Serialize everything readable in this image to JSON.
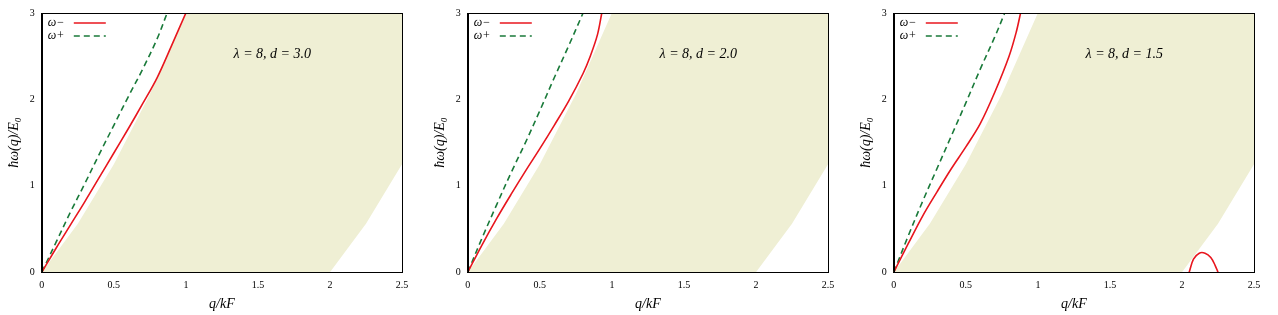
{
  "chart_data": [
    {
      "type": "line",
      "x_label": "q/kF",
      "y_label": "ħω(q)/E₀",
      "annotation": "λ = 8, d = 3.0",
      "xlim": [
        0,
        2.5
      ],
      "xticks": [
        0,
        0.5,
        1,
        1.5,
        2,
        2.5
      ],
      "ylim": [
        0,
        3
      ],
      "yticks": [
        0,
        1,
        2,
        3
      ],
      "grid": false,
      "legend": "top-left",
      "continuum": {
        "color": "#efefd4",
        "x": [
          0,
          0.25,
          0.5,
          0.75,
          1.0,
          1.25,
          1.5,
          1.75,
          2.0,
          2.25,
          2.5
        ],
        "lower": [
          0,
          0,
          0,
          0,
          0,
          0,
          0,
          0,
          0,
          0.56,
          1.25
        ],
        "upper": [
          0,
          0.56,
          1.25,
          2.06,
          3,
          3,
          3,
          3,
          3,
          3,
          3
        ]
      },
      "series": [
        {
          "name": "ω−",
          "color": "#e8161e",
          "line_style": "solid",
          "x": [
            0,
            0.1,
            0.2,
            0.3,
            0.4,
            0.5,
            0.6,
            0.7,
            0.8,
            0.9,
            1.0
          ],
          "values": [
            0,
            0.28,
            0.55,
            0.82,
            1.1,
            1.38,
            1.66,
            1.95,
            2.25,
            2.62,
            3.0
          ]
        },
        {
          "name": "ω+",
          "color": "#1a7a3a",
          "line_style": "dashed",
          "x": [
            0,
            0.1,
            0.2,
            0.3,
            0.4,
            0.5,
            0.6,
            0.7,
            0.8,
            0.87
          ],
          "values": [
            0,
            0.35,
            0.7,
            1.03,
            1.37,
            1.7,
            2.03,
            2.35,
            2.7,
            3.0
          ]
        }
      ]
    },
    {
      "type": "line",
      "x_label": "q/kF",
      "y_label": "ħω(q)/E₀",
      "annotation": "λ = 8, d = 2.0",
      "xlim": [
        0,
        2.5
      ],
      "xticks": [
        0,
        0.5,
        1,
        1.5,
        2,
        2.5
      ],
      "ylim": [
        0,
        3
      ],
      "yticks": [
        0,
        1,
        2,
        3
      ],
      "grid": false,
      "legend": "top-left",
      "continuum": {
        "color": "#efefd4",
        "x": [
          0,
          0.25,
          0.5,
          0.75,
          1.0,
          1.25,
          1.5,
          1.75,
          2.0,
          2.25,
          2.5
        ],
        "lower": [
          0,
          0,
          0,
          0,
          0,
          0,
          0,
          0,
          0,
          0.56,
          1.25
        ],
        "upper": [
          0,
          0.56,
          1.25,
          2.06,
          3,
          3,
          3,
          3,
          3,
          3,
          3
        ]
      },
      "series": [
        {
          "name": "ω−",
          "color": "#e8161e",
          "line_style": "solid",
          "x": [
            0,
            0.1,
            0.2,
            0.3,
            0.4,
            0.5,
            0.6,
            0.7,
            0.8,
            0.85,
            0.9,
            0.93
          ],
          "values": [
            0,
            0.32,
            0.62,
            0.9,
            1.17,
            1.43,
            1.7,
            1.98,
            2.3,
            2.5,
            2.75,
            3.0
          ]
        },
        {
          "name": "ω+",
          "color": "#1a7a3a",
          "line_style": "dashed",
          "x": [
            0,
            0.1,
            0.2,
            0.3,
            0.4,
            0.5,
            0.6,
            0.7,
            0.8
          ],
          "values": [
            0,
            0.4,
            0.78,
            1.15,
            1.5,
            1.87,
            2.25,
            2.62,
            3.0
          ]
        }
      ]
    },
    {
      "type": "line",
      "x_label": "q/kF",
      "y_label": "ħω(q)/E₀",
      "annotation": "λ = 8, d = 1.5",
      "xlim": [
        0,
        2.5
      ],
      "xticks": [
        0,
        0.5,
        1,
        1.5,
        2,
        2.5
      ],
      "ylim": [
        0,
        3
      ],
      "yticks": [
        0,
        1,
        2,
        3
      ],
      "grid": false,
      "legend": "top-left",
      "continuum": {
        "color": "#efefd4",
        "x": [
          0,
          0.25,
          0.5,
          0.75,
          1.0,
          1.25,
          1.5,
          1.75,
          2.0,
          2.25,
          2.5
        ],
        "lower": [
          0,
          0,
          0,
          0,
          0,
          0,
          0,
          0,
          0,
          0.56,
          1.25
        ],
        "upper": [
          0,
          0.56,
          1.25,
          2.06,
          3,
          3,
          3,
          3,
          3,
          3,
          3
        ]
      },
      "series": [
        {
          "name": "ω−",
          "color": "#e8161e",
          "line_style": "solid",
          "x": [
            0,
            0.1,
            0.2,
            0.3,
            0.4,
            0.5,
            0.6,
            0.7,
            0.8,
            0.85,
            0.88,
            1.5,
            2.05,
            2.08,
            2.12,
            2.16,
            2.2,
            2.23,
            2.25
          ],
          "values": [
            0,
            0.33,
            0.65,
            0.93,
            1.2,
            1.45,
            1.72,
            2.08,
            2.5,
            2.78,
            3.0,
            null,
            0,
            0.15,
            0.22,
            0.22,
            0.17,
            0.08,
            0
          ]
        },
        {
          "name": "ω+",
          "color": "#1a7a3a",
          "line_style": "dashed",
          "x": [
            0,
            0.1,
            0.2,
            0.3,
            0.4,
            0.5,
            0.6,
            0.7,
            0.77
          ],
          "values": [
            0,
            0.42,
            0.82,
            1.2,
            1.58,
            1.96,
            2.35,
            2.72,
            3.0
          ]
        }
      ]
    }
  ]
}
